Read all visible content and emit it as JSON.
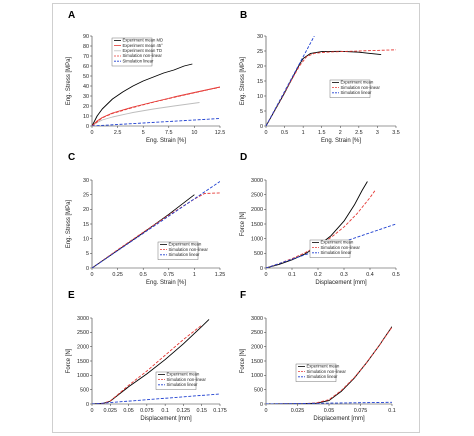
{
  "chart_data": [
    {
      "panel": "A",
      "type": "line",
      "xlabel": "Eng. Strain [%]",
      "ylabel": "Eng. Stress [MPa]",
      "xlim": [
        0,
        12.5
      ],
      "ylim": [
        0,
        90
      ],
      "xticks": [
        0,
        2.5,
        5,
        7.5,
        10,
        12.5
      ],
      "xtick_labels": [
        "0",
        "2.5",
        "5",
        "7.5",
        "10",
        "12.5"
      ],
      "yticks": [
        0,
        10,
        20,
        30,
        40,
        50,
        60,
        70,
        80,
        90
      ],
      "ytick_labels": [
        "0",
        "10",
        "20",
        "30",
        "40",
        "50",
        "60",
        "70",
        "80",
        "90"
      ],
      "legend_position": "top-left",
      "series": [
        {
          "name": "Experiment mean MD",
          "color": "#000000",
          "dash": "solid",
          "x": [
            0,
            0.5,
            1,
            2,
            3,
            4,
            5,
            6,
            7,
            8,
            9,
            9.8
          ],
          "y": [
            0,
            10,
            17,
            27,
            34,
            40,
            45,
            49,
            53,
            56,
            60,
            62
          ]
        },
        {
          "name": "Experiment mean 45°",
          "color": "#e53935",
          "dash": "solid",
          "x": [
            0,
            0.5,
            1,
            2,
            4,
            6,
            8,
            10,
            12.5
          ],
          "y": [
            0,
            5,
            8.5,
            13,
            19,
            24,
            29,
            33.5,
            39
          ]
        },
        {
          "name": "Experiment mean TD",
          "color": "#bdbdbd",
          "dash": "solid",
          "x": [
            0,
            0.5,
            1,
            2,
            4,
            6,
            8,
            10.5
          ],
          "y": [
            0,
            3.5,
            6,
            9,
            13.5,
            17,
            20,
            23.5
          ]
        },
        {
          "name": "Simulation non-linear",
          "color": "#e53935",
          "dash": "dashed",
          "x": [
            0,
            1,
            2,
            4,
            6,
            8,
            10,
            12.5
          ],
          "y": [
            0,
            8.2,
            12.5,
            18.5,
            23.8,
            28.6,
            33.2,
            38.8
          ]
        },
        {
          "name": "Simulation linear",
          "color": "#1e3fd0",
          "dash": "dashed",
          "x": [
            0,
            12.5
          ],
          "y": [
            0,
            7.5
          ]
        }
      ]
    },
    {
      "panel": "B",
      "type": "line",
      "xlabel": "Eng. Strain [%]",
      "ylabel": "Eng. Stress [MPa]",
      "xlim": [
        0,
        3.5
      ],
      "ylim": [
        0,
        30
      ],
      "xticks": [
        0,
        0.5,
        1,
        1.5,
        2,
        2.5,
        3,
        3.5
      ],
      "xtick_labels": [
        "0",
        "0.5",
        "1",
        "1.5",
        "2",
        "2.5",
        "3",
        "3.5"
      ],
      "yticks": [
        0,
        5,
        10,
        15,
        20,
        25,
        30
      ],
      "ytick_labels": [
        "0",
        "5",
        "10",
        "15",
        "20",
        "25",
        "30"
      ],
      "legend_position": "middle-right",
      "series": [
        {
          "name": "Experiment mean",
          "color": "#000000",
          "dash": "solid",
          "x": [
            0,
            0.25,
            0.5,
            0.75,
            0.9,
            1,
            1.2,
            1.5,
            2,
            2.5,
            2.8,
            3.1
          ],
          "y": [
            0,
            5.5,
            11,
            17,
            20.5,
            22.5,
            24.2,
            24.8,
            24.9,
            24.6,
            24.2,
            23.8
          ]
        },
        {
          "name": "Simulation non-linear",
          "color": "#e53935",
          "dash": "dashed",
          "x": [
            0,
            0.5,
            0.9,
            1.1,
            1.3,
            1.6,
            2,
            2.5,
            3,
            3.5
          ],
          "y": [
            0,
            11.2,
            20,
            23.2,
            24.2,
            24.6,
            24.8,
            25,
            25.2,
            25.4
          ]
        },
        {
          "name": "Simulation linear",
          "color": "#1e3fd0",
          "dash": "dashed",
          "x": [
            0,
            1.3
          ],
          "y": [
            0,
            30
          ]
        }
      ]
    },
    {
      "panel": "C",
      "type": "line",
      "xlabel": "Eng. Strain [%]",
      "ylabel": "Eng. Stress [MPa]",
      "xlim": [
        0,
        1.25
      ],
      "ylim": [
        0,
        30
      ],
      "xticks": [
        0,
        0.25,
        0.5,
        0.75,
        1,
        1.25
      ],
      "xtick_labels": [
        "0",
        "0.25",
        "0.5",
        "0.75",
        "1",
        "1.25"
      ],
      "yticks": [
        0,
        5,
        10,
        15,
        20,
        25,
        30
      ],
      "ytick_labels": [
        "0",
        "5",
        "10",
        "15",
        "20",
        "25",
        "30"
      ],
      "legend_position": "bottom-right",
      "series": [
        {
          "name": "Experiment mean",
          "color": "#000000",
          "dash": "solid",
          "x": [
            0,
            0.25,
            0.5,
            0.75,
            1
          ],
          "y": [
            0,
            6,
            12,
            18.3,
            25
          ]
        },
        {
          "name": "Simulation non-linear",
          "color": "#e53935",
          "dash": "dashed",
          "x": [
            0,
            0.25,
            0.5,
            0.75,
            1,
            1.1,
            1.25
          ],
          "y": [
            0,
            6.2,
            12.2,
            18,
            23.5,
            25.4,
            25.6
          ]
        },
        {
          "name": "Simulation linear",
          "color": "#1e3fd0",
          "dash": "dashed",
          "x": [
            0,
            1.25
          ],
          "y": [
            0,
            29.5
          ]
        }
      ]
    },
    {
      "panel": "D",
      "type": "line",
      "xlabel": "Displacement [mm]",
      "ylabel": "Force [N]",
      "xlim": [
        0,
        0.5
      ],
      "ylim": [
        0,
        3000
      ],
      "xticks": [
        0,
        0.1,
        0.2,
        0.3,
        0.4,
        0.5
      ],
      "xtick_labels": [
        "0",
        "0.1",
        "0.2",
        "0.3",
        "0.4",
        "0.5"
      ],
      "yticks": [
        0,
        500,
        1000,
        1500,
        2000,
        2500,
        3000
      ],
      "ytick_labels": [
        "0",
        "500",
        "1000",
        "1500",
        "2000",
        "2500",
        "3000"
      ],
      "legend_position": "bottom-center",
      "series": [
        {
          "name": "Experiment mean",
          "color": "#000000",
          "dash": "solid",
          "x": [
            0,
            0.05,
            0.1,
            0.15,
            0.2,
            0.25,
            0.3,
            0.34,
            0.37,
            0.39
          ],
          "y": [
            0,
            120,
            280,
            480,
            750,
            1100,
            1600,
            2150,
            2650,
            2950
          ]
        },
        {
          "name": "Simulation non-linear",
          "color": "#e53935",
          "dash": "dashed",
          "x": [
            0,
            0.05,
            0.1,
            0.15,
            0.2,
            0.25,
            0.3,
            0.35,
            0.4,
            0.42
          ],
          "y": [
            0,
            150,
            320,
            520,
            760,
            1040,
            1400,
            1850,
            2400,
            2650
          ]
        },
        {
          "name": "Simulation linear",
          "color": "#1e3fd0",
          "dash": "dashed",
          "x": [
            0,
            0.5
          ],
          "y": [
            0,
            1500
          ]
        }
      ]
    },
    {
      "panel": "E",
      "type": "line",
      "xlabel": "Displacement [mm]",
      "ylabel": "Force [N]",
      "xlim": [
        0,
        0.175
      ],
      "ylim": [
        0,
        3000
      ],
      "xticks": [
        0,
        0.025,
        0.05,
        0.075,
        0.1,
        0.125,
        0.15,
        0.175
      ],
      "xtick_labels": [
        "0",
        "0.025",
        "0.05",
        "0.075",
        "0.1",
        "0.125",
        "0.15",
        "0.175"
      ],
      "yticks": [
        0,
        500,
        1000,
        1500,
        2000,
        2500,
        3000
      ],
      "ytick_labels": [
        "0",
        "500",
        "1000",
        "1500",
        "2000",
        "2500",
        "3000"
      ],
      "legend_position": "bottom-right",
      "series": [
        {
          "name": "Experiment mean",
          "color": "#000000",
          "dash": "solid",
          "x": [
            0,
            0.015,
            0.025,
            0.035,
            0.05,
            0.075,
            0.1,
            0.125,
            0.15,
            0.16
          ],
          "y": [
            0,
            20,
            100,
            300,
            600,
            1050,
            1550,
            2100,
            2700,
            2950
          ]
        },
        {
          "name": "Simulation non-linear",
          "color": "#e53935",
          "dash": "dashed",
          "x": [
            0,
            0.015,
            0.025,
            0.035,
            0.05,
            0.075,
            0.1,
            0.125,
            0.15
          ],
          "y": [
            0,
            20,
            110,
            320,
            650,
            1150,
            1700,
            2250,
            2750
          ]
        },
        {
          "name": "Simulation linear",
          "color": "#1e3fd0",
          "dash": "dashed",
          "x": [
            0,
            0.175
          ],
          "y": [
            0,
            350
          ]
        }
      ]
    },
    {
      "panel": "F",
      "type": "line",
      "xlabel": "Displacement [mm]",
      "ylabel": "Force [N]",
      "xlim": [
        0,
        0.1
      ],
      "ylim": [
        0,
        3000
      ],
      "xticks": [
        0,
        0.025,
        0.05,
        0.075,
        0.1
      ],
      "xtick_labels": [
        "0",
        "0.025",
        "0.05",
        "0.075",
        "0.1"
      ],
      "yticks": [
        0,
        500,
        1000,
        1500,
        2000,
        2500,
        3000
      ],
      "ytick_labels": [
        "0",
        "500",
        "1000",
        "1500",
        "2000",
        "2500",
        "3000"
      ],
      "legend_position": "bottom-left",
      "series": [
        {
          "name": "Experiment mean",
          "color": "#000000",
          "dash": "solid",
          "x": [
            0,
            0.03,
            0.04,
            0.05,
            0.06,
            0.07,
            0.08,
            0.09,
            0.1
          ],
          "y": [
            0,
            10,
            30,
            120,
            450,
            900,
            1450,
            2050,
            2700
          ]
        },
        {
          "name": "Simulation non-linear",
          "color": "#e53935",
          "dash": "dashed",
          "x": [
            0,
            0.03,
            0.04,
            0.05,
            0.06,
            0.07,
            0.08,
            0.09,
            0.1
          ],
          "y": [
            0,
            10,
            40,
            150,
            480,
            920,
            1450,
            2050,
            2680
          ]
        },
        {
          "name": "Simulation linear",
          "color": "#1e3fd0",
          "dash": "dashed",
          "x": [
            0,
            0.1
          ],
          "y": [
            0,
            60
          ]
        }
      ]
    }
  ]
}
